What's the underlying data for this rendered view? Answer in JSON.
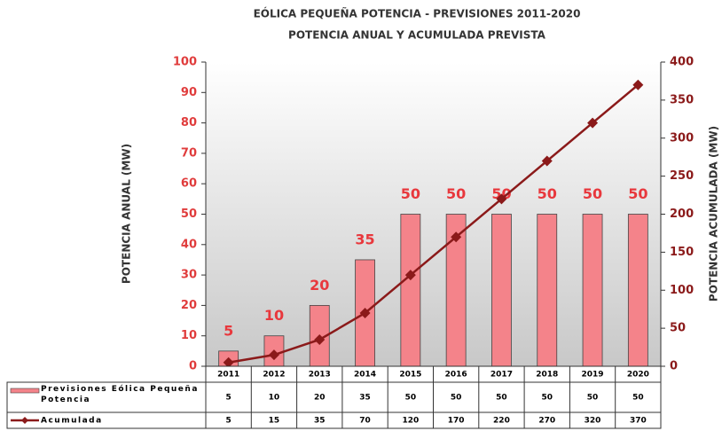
{
  "chart_data": {
    "type": "bar",
    "title": "EÓLICA PEQUEÑA POTENCIA - PREVISIONES 2011-2020",
    "subtitle": "POTENCIA ANUAL Y ACUMULADA PREVISTA",
    "y_label": "POTENCIA ANUAL (MW)",
    "y2_label": "POTENCIA ACUMULADA (MW)",
    "categories": [
      "2011",
      "2012",
      "2013",
      "2014",
      "2015",
      "2016",
      "2017",
      "2018",
      "2019",
      "2020"
    ],
    "series": [
      {
        "name": "Previsiones Eólica Pequeña Potencia",
        "type": "bar",
        "axis": "y",
        "color": "#f4838a",
        "values": [
          5,
          10,
          20,
          35,
          50,
          50,
          50,
          50,
          50,
          50
        ]
      },
      {
        "name": "Acumulada",
        "type": "line",
        "axis": "y2",
        "color": "#8b1a1a",
        "values": [
          5,
          15,
          35,
          70,
          120,
          170,
          220,
          270,
          320,
          370
        ]
      }
    ],
    "ylim": [
      0,
      100
    ],
    "yticks": [
      0,
      10,
      20,
      30,
      40,
      50,
      60,
      70,
      80,
      90,
      100
    ],
    "y2lim": [
      0,
      400
    ],
    "y2ticks": [
      0,
      50,
      100,
      150,
      200,
      250,
      300,
      350,
      400
    ],
    "grid": false
  }
}
